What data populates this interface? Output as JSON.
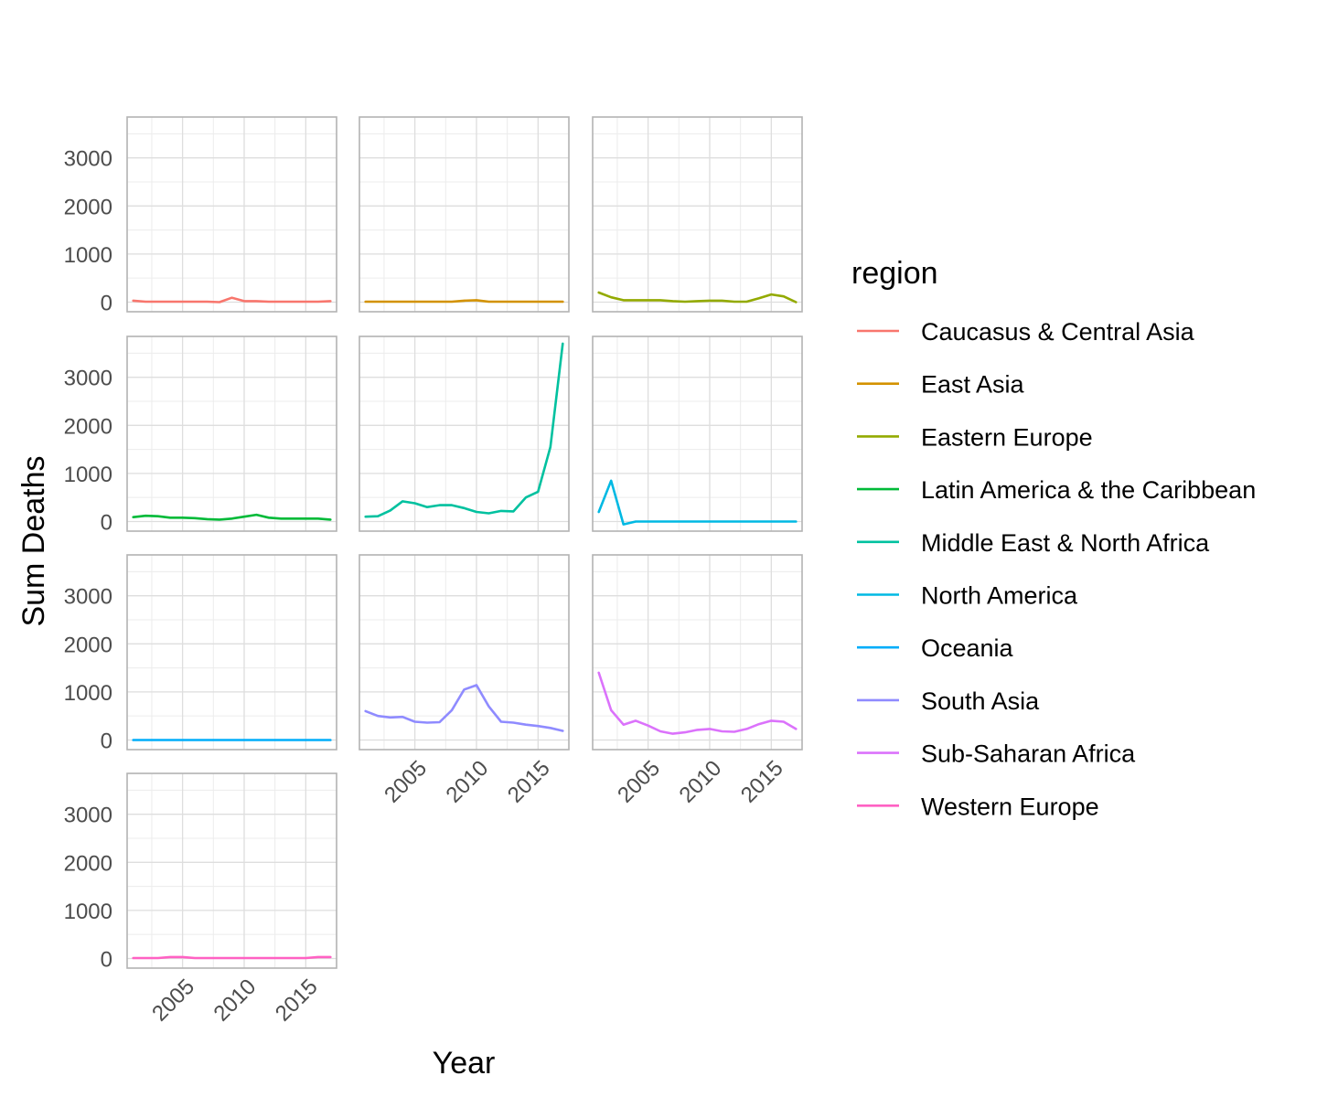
{
  "chart_data": {
    "type": "line",
    "facet_layout": "wrap-4-rows-3-cols",
    "xlabel": "Year",
    "ylabel": "Sum Deaths",
    "xlim": [
      2000.5,
      2017.5
    ],
    "ylim": [
      -200,
      3850
    ],
    "x_ticks": [
      2005,
      2010,
      2015
    ],
    "x_tick_labels": [
      "2005",
      "2010",
      "2015"
    ],
    "y_ticks": [
      0,
      1000,
      2000,
      3000
    ],
    "y_tick_labels": [
      "0",
      "1000",
      "2000",
      "3000"
    ],
    "grid": true,
    "legend": {
      "title": "region",
      "placement": "right"
    },
    "x": [
      2001,
      2002,
      2003,
      2004,
      2005,
      2006,
      2007,
      2008,
      2009,
      2010,
      2011,
      2012,
      2013,
      2014,
      2015,
      2016,
      2017
    ],
    "series": [
      {
        "name": "Caucasus & Central Asia",
        "color": "#F8766D",
        "values": [
          30,
          10,
          10,
          10,
          10,
          10,
          10,
          0,
          90,
          20,
          20,
          10,
          10,
          10,
          10,
          10,
          20
        ]
      },
      {
        "name": "East Asia",
        "color": "#D39200",
        "values": [
          10,
          10,
          10,
          10,
          10,
          10,
          10,
          10,
          30,
          40,
          10,
          10,
          10,
          10,
          10,
          10,
          10
        ]
      },
      {
        "name": "Eastern Europe",
        "color": "#93AA00",
        "values": [
          200,
          100,
          40,
          40,
          40,
          40,
          20,
          10,
          20,
          30,
          30,
          10,
          10,
          80,
          160,
          120,
          0
        ]
      },
      {
        "name": "Latin America & the Caribbean",
        "color": "#00BA38",
        "values": [
          90,
          120,
          110,
          80,
          80,
          70,
          50,
          40,
          60,
          100,
          140,
          80,
          60,
          60,
          60,
          60,
          40
        ]
      },
      {
        "name": "Middle East & North Africa",
        "color": "#00C19F",
        "values": [
          100,
          110,
          230,
          420,
          380,
          300,
          340,
          340,
          280,
          200,
          170,
          220,
          210,
          500,
          620,
          1550,
          3700
        ]
      },
      {
        "name": "North America",
        "color": "#00B9E3",
        "values": [
          200,
          850,
          -60,
          0,
          0,
          0,
          0,
          0,
          0,
          0,
          0,
          0,
          0,
          0,
          0,
          0,
          0
        ]
      },
      {
        "name": "Oceania",
        "color": "#00ADFA",
        "values": [
          0,
          0,
          0,
          0,
          0,
          0,
          0,
          0,
          0,
          0,
          0,
          0,
          0,
          0,
          0,
          0,
          0
        ]
      },
      {
        "name": "South Asia",
        "color": "#8F8BFF",
        "values": [
          600,
          500,
          470,
          480,
          380,
          360,
          370,
          620,
          1050,
          1140,
          700,
          380,
          360,
          320,
          290,
          250,
          190
        ]
      },
      {
        "name": "Sub-Saharan Africa",
        "color": "#DB72FB",
        "values": [
          1400,
          620,
          320,
          400,
          300,
          180,
          130,
          160,
          210,
          230,
          180,
          170,
          230,
          330,
          400,
          380,
          230
        ]
      },
      {
        "name": "Western Europe",
        "color": "#FF61C3",
        "values": [
          10,
          10,
          10,
          30,
          30,
          10,
          10,
          10,
          10,
          10,
          10,
          10,
          10,
          10,
          10,
          30,
          30
        ]
      }
    ]
  }
}
